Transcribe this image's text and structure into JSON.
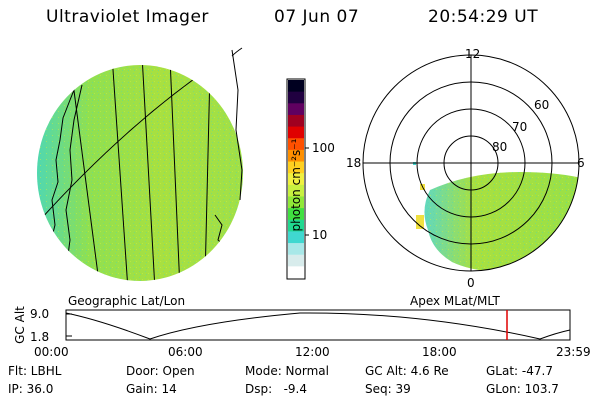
{
  "header": {
    "title": "Ultraviolet Imager",
    "date": "07 Jun 07",
    "time": "20:54:29 UT"
  },
  "colorbar": {
    "unit_label": "photon cm⁻²s⁻¹",
    "ticks": [
      "100",
      "10"
    ],
    "colors": [
      "#ffffff",
      "#d8ecec",
      "#a8e8e8",
      "#40d8d0",
      "#20d890",
      "#40e040",
      "#90e838",
      "#c8f040",
      "#f0f040",
      "#ffd020",
      "#ff9000",
      "#ff5000",
      "#e00000",
      "#a00020",
      "#600060",
      "#200040",
      "#000020"
    ]
  },
  "left_panel": {
    "caption": "Geographic Lat/Lon",
    "disc_colors": {
      "main": "#a8e040",
      "edge": "#60d8a0"
    }
  },
  "right_panel": {
    "caption": "Apex MLat/MLT",
    "mlt_labels": {
      "top": "12",
      "left": "18",
      "right": "6",
      "bottom": "0"
    },
    "mlat_labels": [
      "60",
      "70",
      "80"
    ]
  },
  "timeline": {
    "axis_label": "GC Alt",
    "y_ticks": [
      "9.0",
      "1.8"
    ],
    "x_ticks": [
      "00:00",
      "06:00",
      "12:00",
      "18:00",
      "23:59"
    ],
    "current_time_fraction": 0.875,
    "marker_color": "#e00000"
  },
  "info": {
    "row1": {
      "flt": "Flt: LBHL",
      "door": "Door: Open",
      "mode": "Mode: Normal",
      "gcalt": "GC Alt: 4.6 Re",
      "glat": "GLat: -47.7"
    },
    "row2": {
      "ip": "IP: 36.0",
      "gain": "Gain: 14",
      "dsp": "Dsp:   -9.4",
      "seq": "Seq: 39",
      "glon": "GLon: 103.7"
    }
  }
}
